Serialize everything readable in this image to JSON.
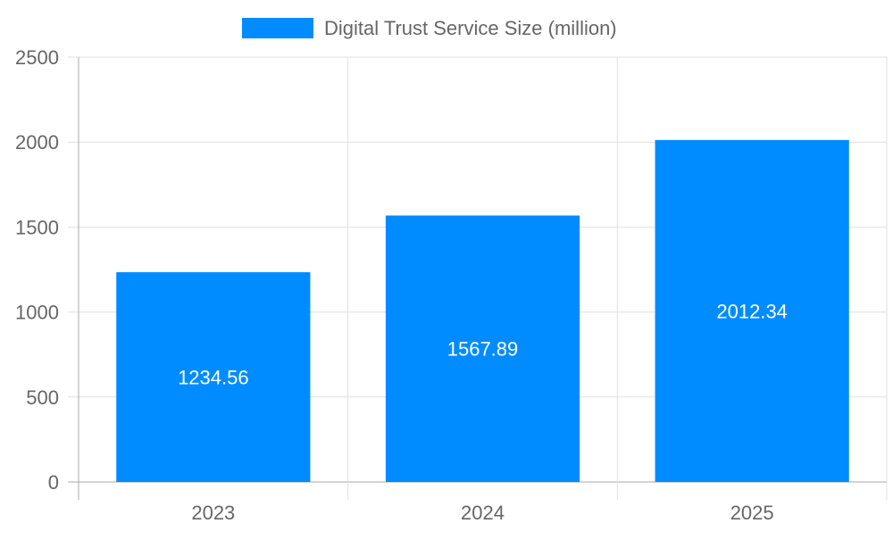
{
  "chart_data": {
    "type": "bar",
    "title": "",
    "xlabel": "",
    "ylabel": "",
    "categories": [
      "2023",
      "2024",
      "2025"
    ],
    "series": [
      {
        "name": "Digital Trust Service Size (million)",
        "values": [
          1234.56,
          1567.89,
          2012.34
        ],
        "color": "#008cff"
      }
    ],
    "ylim": [
      0,
      2500
    ],
    "yticks": [
      0,
      500,
      1000,
      1500,
      2000,
      2500
    ],
    "grid": true,
    "legend_position": "top",
    "data_labels": true
  }
}
